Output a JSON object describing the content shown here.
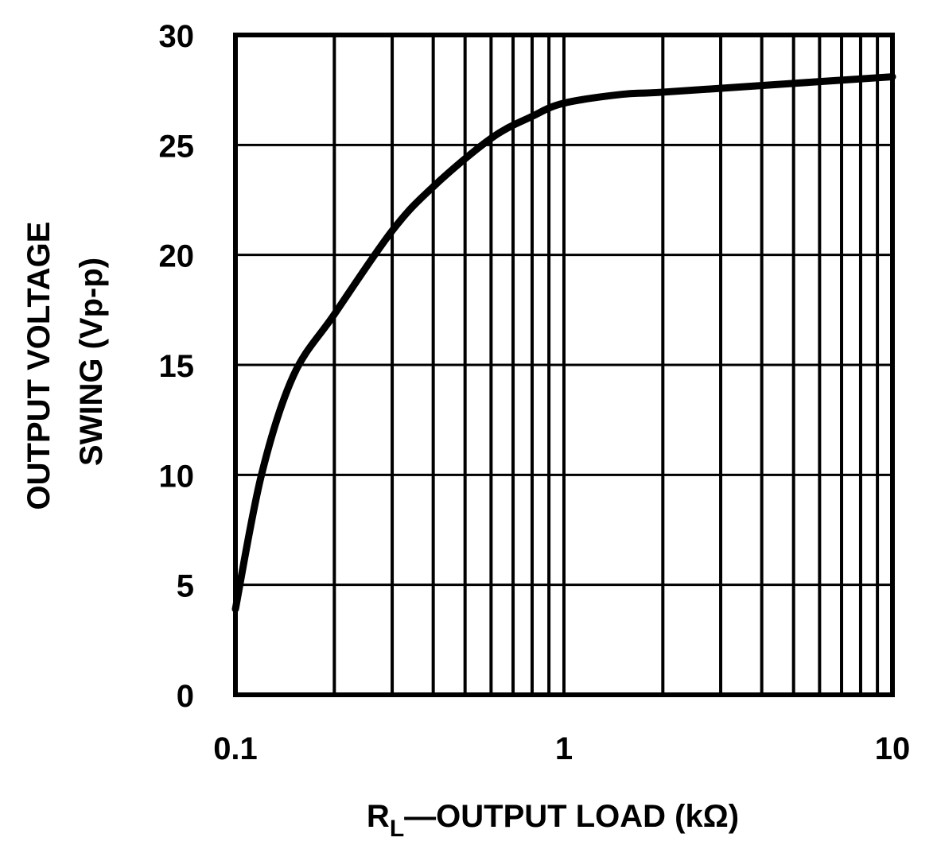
{
  "chart_data": {
    "type": "line",
    "title": "",
    "xlabel": "RL—OUTPUT LOAD (kΩ)",
    "xlabel_parts": {
      "main": "R",
      "sub": "L",
      "rest": "—OUTPUT LOAD (kΩ)"
    },
    "ylabel_line1": "OUTPUT VOLTAGE",
    "ylabel_line2": "SWING (Vp-p)",
    "x_scale": "log",
    "xlim": [
      0.1,
      10
    ],
    "ylim": [
      0,
      30
    ],
    "x_ticks": [
      0.1,
      1,
      10
    ],
    "x_tick_labels": [
      "0.1",
      "1",
      "10"
    ],
    "y_ticks": [
      0,
      5,
      10,
      15,
      20,
      25,
      30
    ],
    "y_tick_labels": [
      "0",
      "5",
      "10",
      "15",
      "20",
      "25",
      "30"
    ],
    "grid": true,
    "legend": null,
    "series": [
      {
        "name": "Output Voltage Swing",
        "x": [
          0.1,
          0.12,
          0.15,
          0.2,
          0.3,
          0.4,
          0.6,
          0.8,
          1.0,
          1.5,
          2,
          5,
          10
        ],
        "values": [
          3.9,
          10.0,
          14.5,
          17.3,
          21.1,
          23.1,
          25.3,
          26.3,
          26.9,
          27.3,
          27.4,
          27.8,
          28.1
        ]
      }
    ]
  }
}
